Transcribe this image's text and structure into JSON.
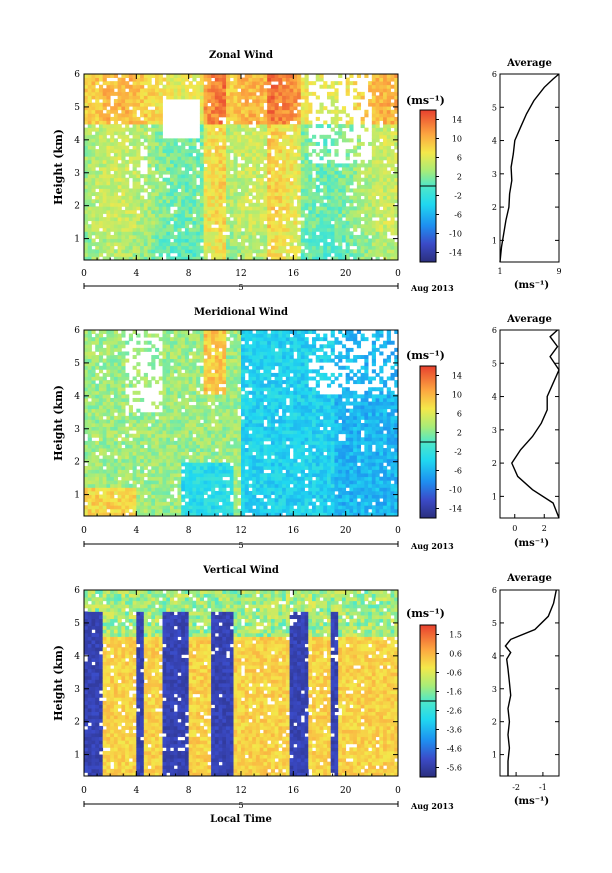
{
  "chart_data": [
    {
      "type": "heatmap",
      "title": "Zonal Wind",
      "ylabel": "Height (km)",
      "x_ticks": [
        "0",
        "4",
        "8",
        "12",
        "16",
        "20",
        "0"
      ],
      "y_ticks": [
        "1",
        "2",
        "3",
        "4",
        "5",
        "6"
      ],
      "xlim": [
        0,
        24
      ],
      "ylim": [
        0.35,
        6
      ],
      "date_tick": "5",
      "date_label": "Aug 2013",
      "colorbar": {
        "unit": "(ms⁻¹)",
        "ticks": [
          "14",
          "10",
          "6",
          "2",
          "-2",
          "-6",
          "-10",
          "-14"
        ],
        "range": [
          -16,
          16
        ]
      },
      "profile": {
        "title": "Average",
        "x_ticks": [
          "1",
          "9"
        ],
        "xlim": [
          1,
          9
        ],
        "y_ticks": [
          "1",
          "2",
          "3",
          "4",
          "5",
          "6"
        ],
        "xlabel": "(ms⁻¹)",
        "points": [
          [
            1.0,
            0.35
          ],
          [
            1.2,
            0.8
          ],
          [
            1.5,
            1.2
          ],
          [
            1.8,
            1.6
          ],
          [
            2.2,
            2.0
          ],
          [
            2.3,
            2.4
          ],
          [
            2.6,
            2.8
          ],
          [
            2.5,
            3.2
          ],
          [
            2.8,
            3.6
          ],
          [
            3.0,
            4.0
          ],
          [
            3.8,
            4.4
          ],
          [
            4.6,
            4.8
          ],
          [
            5.6,
            5.2
          ],
          [
            7.0,
            5.6
          ],
          [
            8.2,
            5.85
          ],
          [
            9.0,
            6.0
          ]
        ]
      }
    },
    {
      "type": "heatmap",
      "title": "Meridional Wind",
      "ylabel": "Height (km)",
      "x_ticks": [
        "0",
        "4",
        "8",
        "12",
        "16",
        "20",
        "0"
      ],
      "y_ticks": [
        "1",
        "2",
        "3",
        "4",
        "5",
        "6"
      ],
      "xlim": [
        0,
        24
      ],
      "ylim": [
        0.35,
        6
      ],
      "date_tick": "5",
      "date_label": "Aug 2013",
      "colorbar": {
        "unit": "(ms⁻¹)",
        "ticks": [
          "14",
          "10",
          "6",
          "2",
          "-2",
          "-6",
          "-10",
          "-14"
        ],
        "range": [
          -16,
          16
        ]
      },
      "profile": {
        "title": "Average",
        "x_ticks": [
          "0",
          "2"
        ],
        "xlim": [
          -1,
          3
        ],
        "y_ticks": [
          "1",
          "2",
          "3",
          "4",
          "5",
          "6"
        ],
        "xlabel": "(ms⁻¹)",
        "points": [
          [
            3.0,
            0.35
          ],
          [
            2.6,
            0.8
          ],
          [
            1.2,
            1.2
          ],
          [
            0.2,
            1.6
          ],
          [
            -0.2,
            2.0
          ],
          [
            0.4,
            2.4
          ],
          [
            1.2,
            2.8
          ],
          [
            1.8,
            3.2
          ],
          [
            2.2,
            3.6
          ],
          [
            2.2,
            4.0
          ],
          [
            2.6,
            4.4
          ],
          [
            3.0,
            4.8
          ],
          [
            2.4,
            5.2
          ],
          [
            2.9,
            5.5
          ],
          [
            2.4,
            5.8
          ],
          [
            2.9,
            6.0
          ]
        ]
      }
    },
    {
      "type": "heatmap",
      "title": "Vertical Wind",
      "ylabel": "Height (km)",
      "xlabel": "Local Time",
      "x_ticks": [
        "0",
        "4",
        "8",
        "12",
        "16",
        "20",
        "0"
      ],
      "y_ticks": [
        "1",
        "2",
        "3",
        "4",
        "5",
        "6"
      ],
      "xlim": [
        0,
        24
      ],
      "ylim": [
        0.35,
        6
      ],
      "date_tick": "5",
      "date_label": "Aug 2013",
      "colorbar": {
        "unit": "(ms⁻¹)",
        "ticks": [
          "1.5",
          "0.6",
          "-0.6",
          "-1.6",
          "-2.6",
          "-3.6",
          "-4.6",
          "-5.6"
        ],
        "range": [
          -6,
          2
        ]
      },
      "profile": {
        "title": "Average",
        "x_ticks": [
          "-2",
          "-1"
        ],
        "xlim": [
          -2.6,
          -0.4
        ],
        "y_ticks": [
          "1",
          "2",
          "3",
          "4",
          "5",
          "6"
        ],
        "xlabel": "(ms⁻¹)",
        "points": [
          [
            -2.3,
            0.35
          ],
          [
            -2.3,
            0.8
          ],
          [
            -2.25,
            1.2
          ],
          [
            -2.3,
            1.6
          ],
          [
            -2.25,
            2.0
          ],
          [
            -2.3,
            2.4
          ],
          [
            -2.2,
            2.8
          ],
          [
            -2.25,
            3.2
          ],
          [
            -2.3,
            3.6
          ],
          [
            -2.35,
            3.9
          ],
          [
            -2.2,
            4.1
          ],
          [
            -2.4,
            4.3
          ],
          [
            -2.2,
            4.5
          ],
          [
            -1.3,
            4.8
          ],
          [
            -0.8,
            5.2
          ],
          [
            -0.6,
            5.6
          ],
          [
            -0.5,
            6.0
          ]
        ]
      }
    }
  ]
}
